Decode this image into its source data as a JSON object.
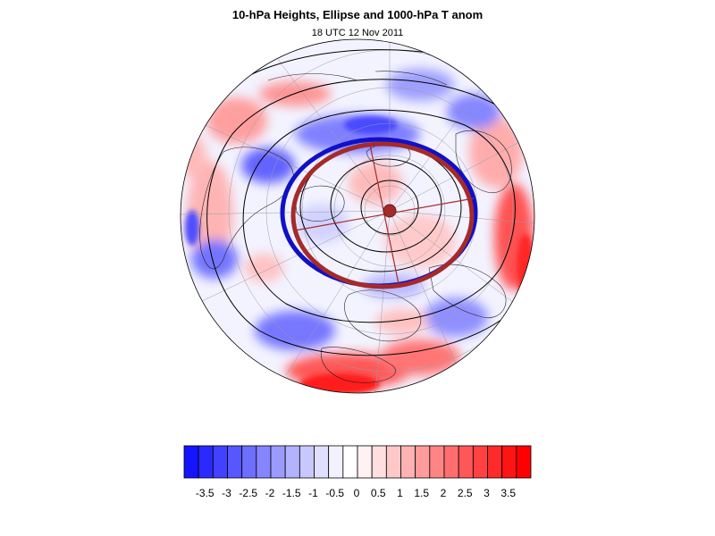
{
  "header": {
    "title": "10-hPa Heights, Ellipse and 1000-hPa T anom",
    "subtitle": "18 UTC 12 Nov 2011"
  },
  "colorbar": {
    "labels": [
      "-3.5",
      "-3",
      "-2.5",
      "-2",
      "-1.5",
      "-1",
      "-0.5",
      "0",
      "0.5",
      "1",
      "1.5",
      "2",
      "2.5",
      "3",
      "3.5"
    ],
    "colors": [
      "#1414ff",
      "#2a2aff",
      "#4141ff",
      "#5757ff",
      "#6e6eff",
      "#8585ff",
      "#9b9bff",
      "#b2b2ff",
      "#c8c8ff",
      "#dfdfff",
      "#f2f2ff",
      "#ffffff",
      "#fff2f2",
      "#ffdfdf",
      "#ffc8c8",
      "#ffb2b2",
      "#ff9b9b",
      "#ff8585",
      "#ff6e6e",
      "#ff5757",
      "#ff4141",
      "#ff2a2a",
      "#ff1414",
      "#ff0000"
    ]
  },
  "map": {
    "projection": "orthographic-north-polar",
    "ellipse_colors": {
      "observed": "#1010c8",
      "fitted": "#a52a2a"
    },
    "contour_color": "#000000"
  }
}
